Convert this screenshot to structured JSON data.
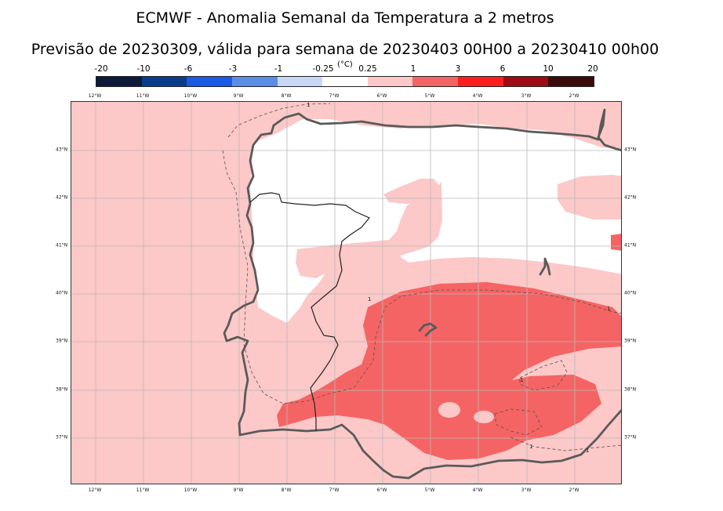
{
  "title": "ECMWF - Anomalia Semanal da Temperatura a 2 metros",
  "subtitle": "Previsão de 20230309, válida para semana de 20230403 00H00 a 20230410 00h00",
  "colorbar": {
    "unit": "(°C)",
    "ticks": [
      "-20",
      "-10",
      "-6",
      "-3",
      "-1",
      "-0.25",
      "0.25",
      "1",
      "3",
      "6",
      "10",
      "20"
    ],
    "colors": [
      "#0d1a3c",
      "#0a3c8c",
      "#1a5ae6",
      "#5a8ee6",
      "#c8d7f5",
      "#ffffff",
      "#fcc8c8",
      "#f56464",
      "#ff1e1e",
      "#a00a14",
      "#3c0a0a"
    ]
  },
  "map": {
    "lon_labels": [
      "12°W",
      "11°W",
      "10°W",
      "9°W",
      "8°W",
      "7°W",
      "6°W",
      "5°W",
      "4°W",
      "3°W",
      "2°W"
    ],
    "lat_labels": [
      "43°N",
      "42°N",
      "41°N",
      "40°N",
      "39°N",
      "38°N",
      "37°N"
    ],
    "contour_label": "1"
  }
}
